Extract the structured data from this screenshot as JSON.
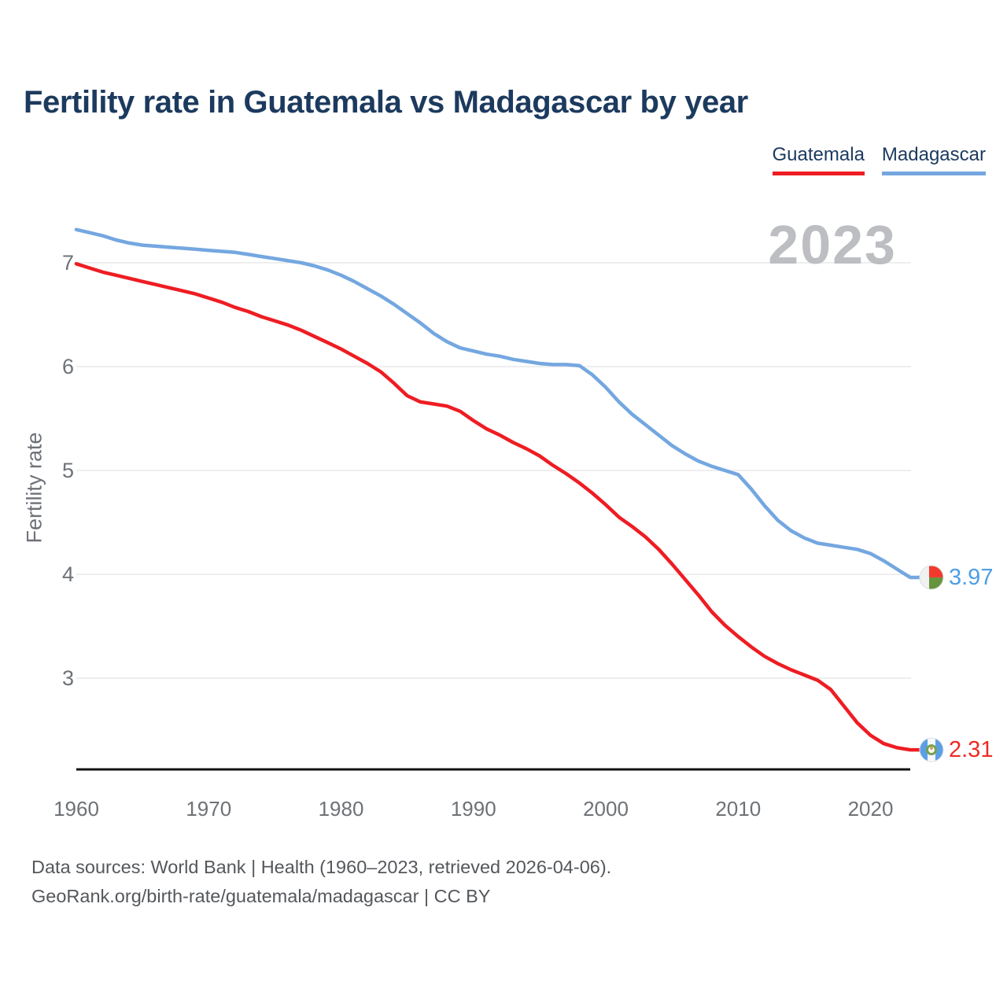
{
  "header": {
    "title": "Fertility rate in Guatemala vs Madagascar by year"
  },
  "legend": {
    "items": [
      {
        "label": "Guatemala",
        "color": "#ee1d23"
      },
      {
        "label": "Madagascar",
        "color": "#74a7e0"
      }
    ]
  },
  "chart_data": {
    "type": "line",
    "title": "Fertility rate in Guatemala vs Madagascar by year",
    "xlabel": "",
    "ylabel": "Fertility rate",
    "watermark": "2023",
    "grid": "horizontal",
    "legend_position": "top-right",
    "x_start": 1960,
    "x_end": 2023,
    "xticks": [
      1960,
      1970,
      1980,
      1990,
      2000,
      2010,
      2020
    ],
    "yticks": [
      3,
      4,
      5,
      6,
      7
    ],
    "ylim": [
      2.15,
      7.45
    ],
    "series": [
      {
        "name": "Guatemala",
        "color": "#ee1d23",
        "label_color": "#ee2a21",
        "end_label": "2.31",
        "flag": "guatemala-flag",
        "values": [
          6.99,
          6.95,
          6.91,
          6.88,
          6.85,
          6.82,
          6.79,
          6.76,
          6.73,
          6.7,
          6.66,
          6.62,
          6.57,
          6.53,
          6.48,
          6.44,
          6.4,
          6.35,
          6.29,
          6.23,
          6.17,
          6.1,
          6.03,
          5.95,
          5.84,
          5.72,
          5.66,
          5.64,
          5.62,
          5.57,
          5.48,
          5.4,
          5.34,
          5.27,
          5.21,
          5.14,
          5.05,
          4.97,
          4.88,
          4.78,
          4.67,
          4.55,
          4.46,
          4.36,
          4.24,
          4.1,
          3.95,
          3.8,
          3.64,
          3.51,
          3.4,
          3.3,
          3.21,
          3.14,
          3.08,
          3.03,
          2.98,
          2.89,
          2.73,
          2.57,
          2.45,
          2.37,
          2.33,
          2.31
        ]
      },
      {
        "name": "Madagascar",
        "color": "#74a7e0",
        "label_color": "#4d9fe6",
        "end_label": "3.97",
        "flag": "madagascar-flag",
        "values": [
          7.32,
          7.29,
          7.26,
          7.22,
          7.19,
          7.17,
          7.16,
          7.15,
          7.14,
          7.13,
          7.12,
          7.11,
          7.1,
          7.08,
          7.06,
          7.04,
          7.02,
          7.0,
          6.97,
          6.93,
          6.88,
          6.82,
          6.75,
          6.68,
          6.6,
          6.51,
          6.42,
          6.32,
          6.24,
          6.18,
          6.15,
          6.12,
          6.1,
          6.07,
          6.05,
          6.03,
          6.02,
          6.02,
          6.01,
          5.92,
          5.8,
          5.66,
          5.54,
          5.44,
          5.34,
          5.24,
          5.16,
          5.09,
          5.04,
          5.0,
          4.96,
          4.82,
          4.66,
          4.52,
          4.42,
          4.35,
          4.3,
          4.28,
          4.26,
          4.24,
          4.2,
          4.13,
          4.05,
          3.97
        ]
      }
    ]
  },
  "footer": {
    "line1": "Data sources: World Bank | Health (1960–2023, retrieved 2026-04-06).",
    "line2": "GeoRank.org/birth-rate/guatemala/madagascar | CC BY"
  }
}
